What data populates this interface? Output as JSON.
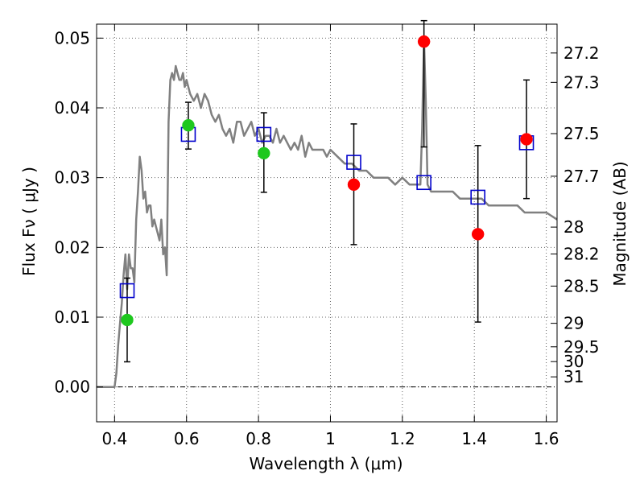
{
  "chart_data": {
    "type": "scatter",
    "title": "",
    "xlabel": "Wavelength  λ (μm)",
    "ylabel": "Flux  Fν  ( μJy )",
    "y2label": "Magnitude (AB)",
    "xlim": [
      0.35,
      1.63
    ],
    "ylim": [
      -0.005,
      0.052
    ],
    "grid": true,
    "x_ticks": [
      {
        "value": 0.4,
        "label": "0.4"
      },
      {
        "value": 0.6,
        "label": "0.6"
      },
      {
        "value": 0.8,
        "label": "0.8"
      },
      {
        "value": 1.0,
        "label": "1"
      },
      {
        "value": 1.2,
        "label": "1.2"
      },
      {
        "value": 1.4,
        "label": "1.4"
      },
      {
        "value": 1.6,
        "label": "1.6"
      }
    ],
    "y_ticks": [
      {
        "value": 0.0,
        "label": "0.00"
      },
      {
        "value": 0.01,
        "label": "0.01"
      },
      {
        "value": 0.02,
        "label": "0.02"
      },
      {
        "value": 0.03,
        "label": "0.03"
      },
      {
        "value": 0.04,
        "label": "0.04"
      },
      {
        "value": 0.05,
        "label": "0.05"
      }
    ],
    "y2_ticks": [
      {
        "value": 27.2,
        "label": "27.2"
      },
      {
        "value": 27.3,
        "label": "27.3"
      },
      {
        "value": 27.5,
        "label": "27.5"
      },
      {
        "value": 27.7,
        "label": "27.7"
      },
      {
        "value": 28.0,
        "label": "28"
      },
      {
        "value": 28.2,
        "label": "28.2"
      },
      {
        "value": 28.5,
        "label": "28.5"
      },
      {
        "value": 29.0,
        "label": "29"
      },
      {
        "value": 29.5,
        "label": "29.5"
      },
      {
        "value": 30.0,
        "label": "30"
      },
      {
        "value": 31.0,
        "label": "31"
      }
    ],
    "series": [
      {
        "kind": "line",
        "color": "#808080",
        "x": [
          0.35,
          0.4,
          0.405,
          0.41,
          0.415,
          0.42,
          0.425,
          0.43,
          0.435,
          0.44,
          0.445,
          0.45,
          0.455,
          0.46,
          0.465,
          0.47,
          0.475,
          0.48,
          0.485,
          0.49,
          0.495,
          0.5,
          0.505,
          0.51,
          0.515,
          0.52,
          0.525,
          0.53,
          0.535,
          0.54,
          0.545,
          0.55,
          0.555,
          0.56,
          0.565,
          0.57,
          0.575,
          0.58,
          0.585,
          0.59,
          0.595,
          0.6,
          0.61,
          0.62,
          0.63,
          0.64,
          0.65,
          0.66,
          0.67,
          0.68,
          0.69,
          0.7,
          0.71,
          0.72,
          0.73,
          0.74,
          0.75,
          0.76,
          0.77,
          0.78,
          0.79,
          0.8,
          0.81,
          0.82,
          0.83,
          0.84,
          0.85,
          0.86,
          0.87,
          0.88,
          0.89,
          0.9,
          0.91,
          0.92,
          0.93,
          0.94,
          0.95,
          0.96,
          0.97,
          0.98,
          0.99,
          1.0,
          1.02,
          1.04,
          1.06,
          1.08,
          1.1,
          1.12,
          1.14,
          1.16,
          1.18,
          1.2,
          1.22,
          1.24,
          1.25,
          1.255,
          1.26,
          1.265,
          1.27,
          1.28,
          1.3,
          1.32,
          1.34,
          1.36,
          1.38,
          1.4,
          1.42,
          1.44,
          1.46,
          1.48,
          1.5,
          1.52,
          1.54,
          1.56,
          1.58,
          1.6,
          1.63
        ],
        "y": [
          0.0,
          0.0,
          0.002,
          0.006,
          0.009,
          0.012,
          0.016,
          0.019,
          0.014,
          0.019,
          0.017,
          0.017,
          0.015,
          0.024,
          0.028,
          0.033,
          0.031,
          0.027,
          0.028,
          0.025,
          0.026,
          0.026,
          0.023,
          0.024,
          0.023,
          0.022,
          0.021,
          0.024,
          0.019,
          0.02,
          0.016,
          0.038,
          0.044,
          0.045,
          0.044,
          0.046,
          0.045,
          0.044,
          0.044,
          0.045,
          0.043,
          0.044,
          0.042,
          0.041,
          0.042,
          0.04,
          0.042,
          0.041,
          0.039,
          0.038,
          0.039,
          0.037,
          0.036,
          0.037,
          0.035,
          0.038,
          0.038,
          0.036,
          0.037,
          0.038,
          0.036,
          0.037,
          0.035,
          0.036,
          0.036,
          0.035,
          0.037,
          0.035,
          0.036,
          0.035,
          0.034,
          0.035,
          0.034,
          0.036,
          0.033,
          0.035,
          0.034,
          0.034,
          0.034,
          0.034,
          0.033,
          0.034,
          0.033,
          0.032,
          0.032,
          0.031,
          0.031,
          0.03,
          0.03,
          0.03,
          0.029,
          0.03,
          0.029,
          0.029,
          0.029,
          0.037,
          0.05,
          0.041,
          0.029,
          0.028,
          0.028,
          0.028,
          0.028,
          0.027,
          0.027,
          0.027,
          0.027,
          0.026,
          0.026,
          0.026,
          0.026,
          0.026,
          0.025,
          0.025,
          0.025,
          0.025,
          0.024
        ]
      },
      {
        "kind": "open-square",
        "color": "#0000cc",
        "x": [
          0.435,
          0.605,
          0.815,
          1.065,
          1.26,
          1.41,
          1.545
        ],
        "y": [
          0.0138,
          0.0362,
          0.0362,
          0.0322,
          0.0293,
          0.0272,
          0.035
        ]
      },
      {
        "kind": "filled-circle",
        "color": "#1ec81e",
        "x": [
          0.435,
          0.605,
          0.815
        ],
        "y": [
          0.0096,
          0.0375,
          0.0335
        ],
        "yerr_low": [
          0.0036,
          0.0341,
          0.0279
        ],
        "yerr_high": [
          0.0156,
          0.0408,
          0.0393
        ]
      },
      {
        "kind": "filled-circle",
        "color": "#ff0000",
        "x": [
          1.065,
          1.26,
          1.41,
          1.545
        ],
        "y": [
          0.029,
          0.0495,
          0.0219,
          0.0355
        ],
        "yerr_low": [
          0.0204,
          0.0344,
          0.0093,
          0.027
        ],
        "yerr_high": [
          0.0377,
          0.0525,
          0.0346,
          0.044
        ]
      }
    ]
  }
}
